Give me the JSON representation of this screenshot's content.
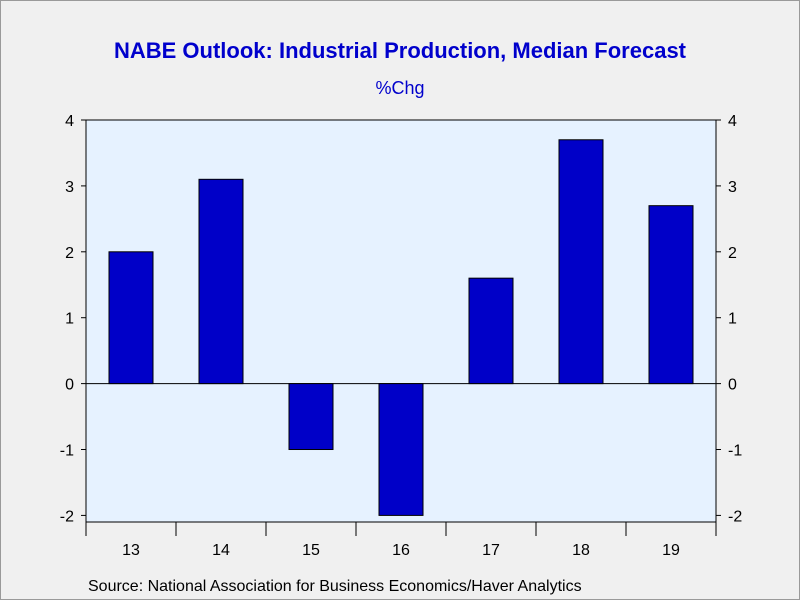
{
  "chart_data": {
    "type": "bar",
    "title": "NABE Outlook: Industrial Production, Median Forecast",
    "subtitle": "%Chg",
    "source": "Source:  National Association for Business Economics/Haver Analytics",
    "categories": [
      "13",
      "14",
      "15",
      "16",
      "17",
      "18",
      "19"
    ],
    "values": [
      2.0,
      3.1,
      -1.0,
      -2.0,
      1.6,
      3.7,
      2.7
    ],
    "ylim": [
      -2.1,
      4.0
    ],
    "yticks": [
      4,
      3,
      2,
      1,
      0,
      -1,
      -2
    ],
    "bar_color": "#0000c8",
    "plot_background": "#e6f2ff",
    "grid": false,
    "legend": "none"
  }
}
